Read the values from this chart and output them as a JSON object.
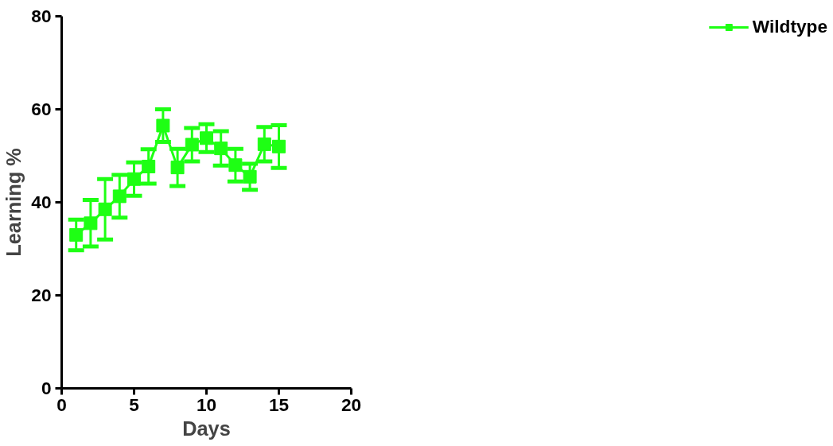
{
  "chart_data": {
    "type": "line",
    "xlabel": "Days",
    "ylabel": "Learning %",
    "x": [
      1,
      2,
      3,
      4,
      5,
      6,
      7,
      8,
      9,
      10,
      11,
      12,
      13,
      14,
      15
    ],
    "series": [
      {
        "name": "Wildtype",
        "color": "#1eff14",
        "values": [
          33,
          35.5,
          38.5,
          41.3,
          45,
          47.7,
          56.5,
          47.5,
          52.4,
          53.8,
          51.6,
          48,
          45.5,
          52.5,
          52
        ],
        "errors": [
          3.3,
          5,
          6.5,
          4.6,
          3.6,
          3.7,
          3.5,
          4,
          3.6,
          3,
          3.7,
          3.5,
          2.8,
          3.7,
          4.6
        ]
      }
    ],
    "xlim": [
      0,
      20
    ],
    "xticks": [
      0,
      5,
      10,
      15,
      20
    ],
    "ylim": [
      0,
      80
    ],
    "yticks": [
      0,
      20,
      40,
      60,
      80
    ],
    "grid": false,
    "legend": "top right",
    "marker": "square",
    "line_style": "solid"
  }
}
